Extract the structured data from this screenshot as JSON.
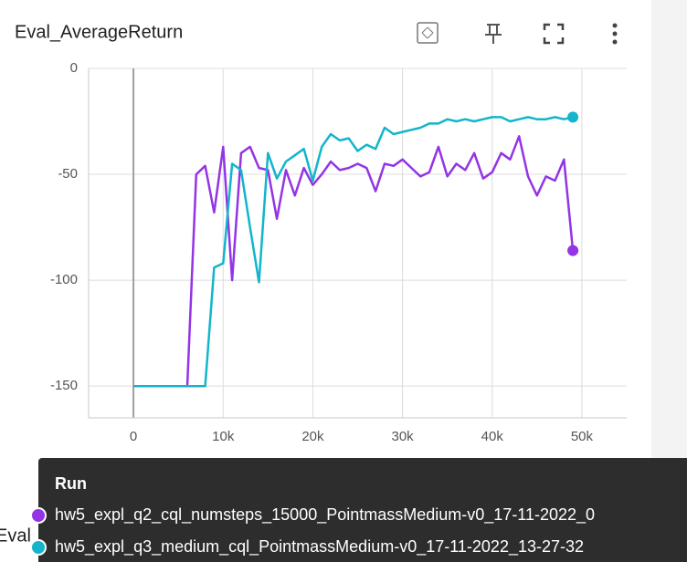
{
  "chart_data": {
    "type": "line",
    "title": "Eval_AverageReturn",
    "x": [
      0,
      1000,
      2000,
      3000,
      4000,
      5000,
      6000,
      7000,
      8000,
      9000,
      10000,
      11000,
      12000,
      13000,
      14000,
      15000,
      16000,
      17000,
      18000,
      19000,
      20000,
      21000,
      22000,
      23000,
      24000,
      25000,
      26000,
      27000,
      28000,
      29000,
      30000,
      31000,
      32000,
      33000,
      34000,
      35000,
      36000,
      37000,
      38000,
      39000,
      40000,
      41000,
      42000,
      43000,
      44000,
      45000,
      46000,
      47000,
      48000,
      49000
    ],
    "series": [
      {
        "name": "hw5_expl_q2_cql_numsteps_15000_PointmassMedium-v0_17-11-2022_0",
        "color": "#9334e6",
        "values": [
          -150,
          -150,
          -150,
          -150,
          -150,
          -150,
          -150,
          -50,
          -46,
          -68,
          -37,
          -100,
          -40,
          -37,
          -47,
          -48,
          -71,
          -48,
          -60,
          -47,
          -55,
          -50,
          -44,
          -48,
          -47,
          -45,
          -47,
          -58,
          -45,
          -46,
          -43,
          -47,
          -51,
          -49,
          -37,
          -51,
          -45,
          -48,
          -40,
          -52,
          -49,
          -40,
          -43,
          -32,
          -51,
          -60,
          -51,
          -53,
          -43,
          -86
        ]
      },
      {
        "name": "hw5_expl_q3_medium_cql_PointmassMedium-v0_17-11-2022_13-27-32",
        "color": "#12b5cb",
        "values": [
          -150,
          -150,
          -150,
          -150,
          -150,
          -150,
          -150,
          -150,
          -150,
          -94,
          -92,
          -45,
          -48,
          -75,
          -101,
          -40,
          -52,
          -44,
          -41,
          -38,
          -53,
          -37,
          -31,
          -34,
          -33,
          -39,
          -36,
          -38,
          -28,
          -31,
          -30,
          -29,
          -28,
          -26,
          -26,
          -24,
          -25,
          -24,
          -25,
          -24,
          -23,
          -23,
          -25,
          -24,
          -23,
          -24,
          -24,
          -23,
          -24,
          -23
        ]
      }
    ],
    "xlim": [
      -5000,
      55000
    ],
    "xticks": [
      {
        "value": 0,
        "label": "0"
      },
      {
        "value": 10000,
        "label": "10k"
      },
      {
        "value": 20000,
        "label": "20k"
      },
      {
        "value": 30000,
        "label": "30k"
      },
      {
        "value": 40000,
        "label": "40k"
      },
      {
        "value": 50000,
        "label": "50k"
      }
    ],
    "ylim": [
      -165,
      0
    ],
    "yticks": [
      -150,
      -100,
      -50,
      0
    ],
    "grid": true
  },
  "tooltip": {
    "header": "Run"
  },
  "next_card_title": "Eval_MaxReturn"
}
